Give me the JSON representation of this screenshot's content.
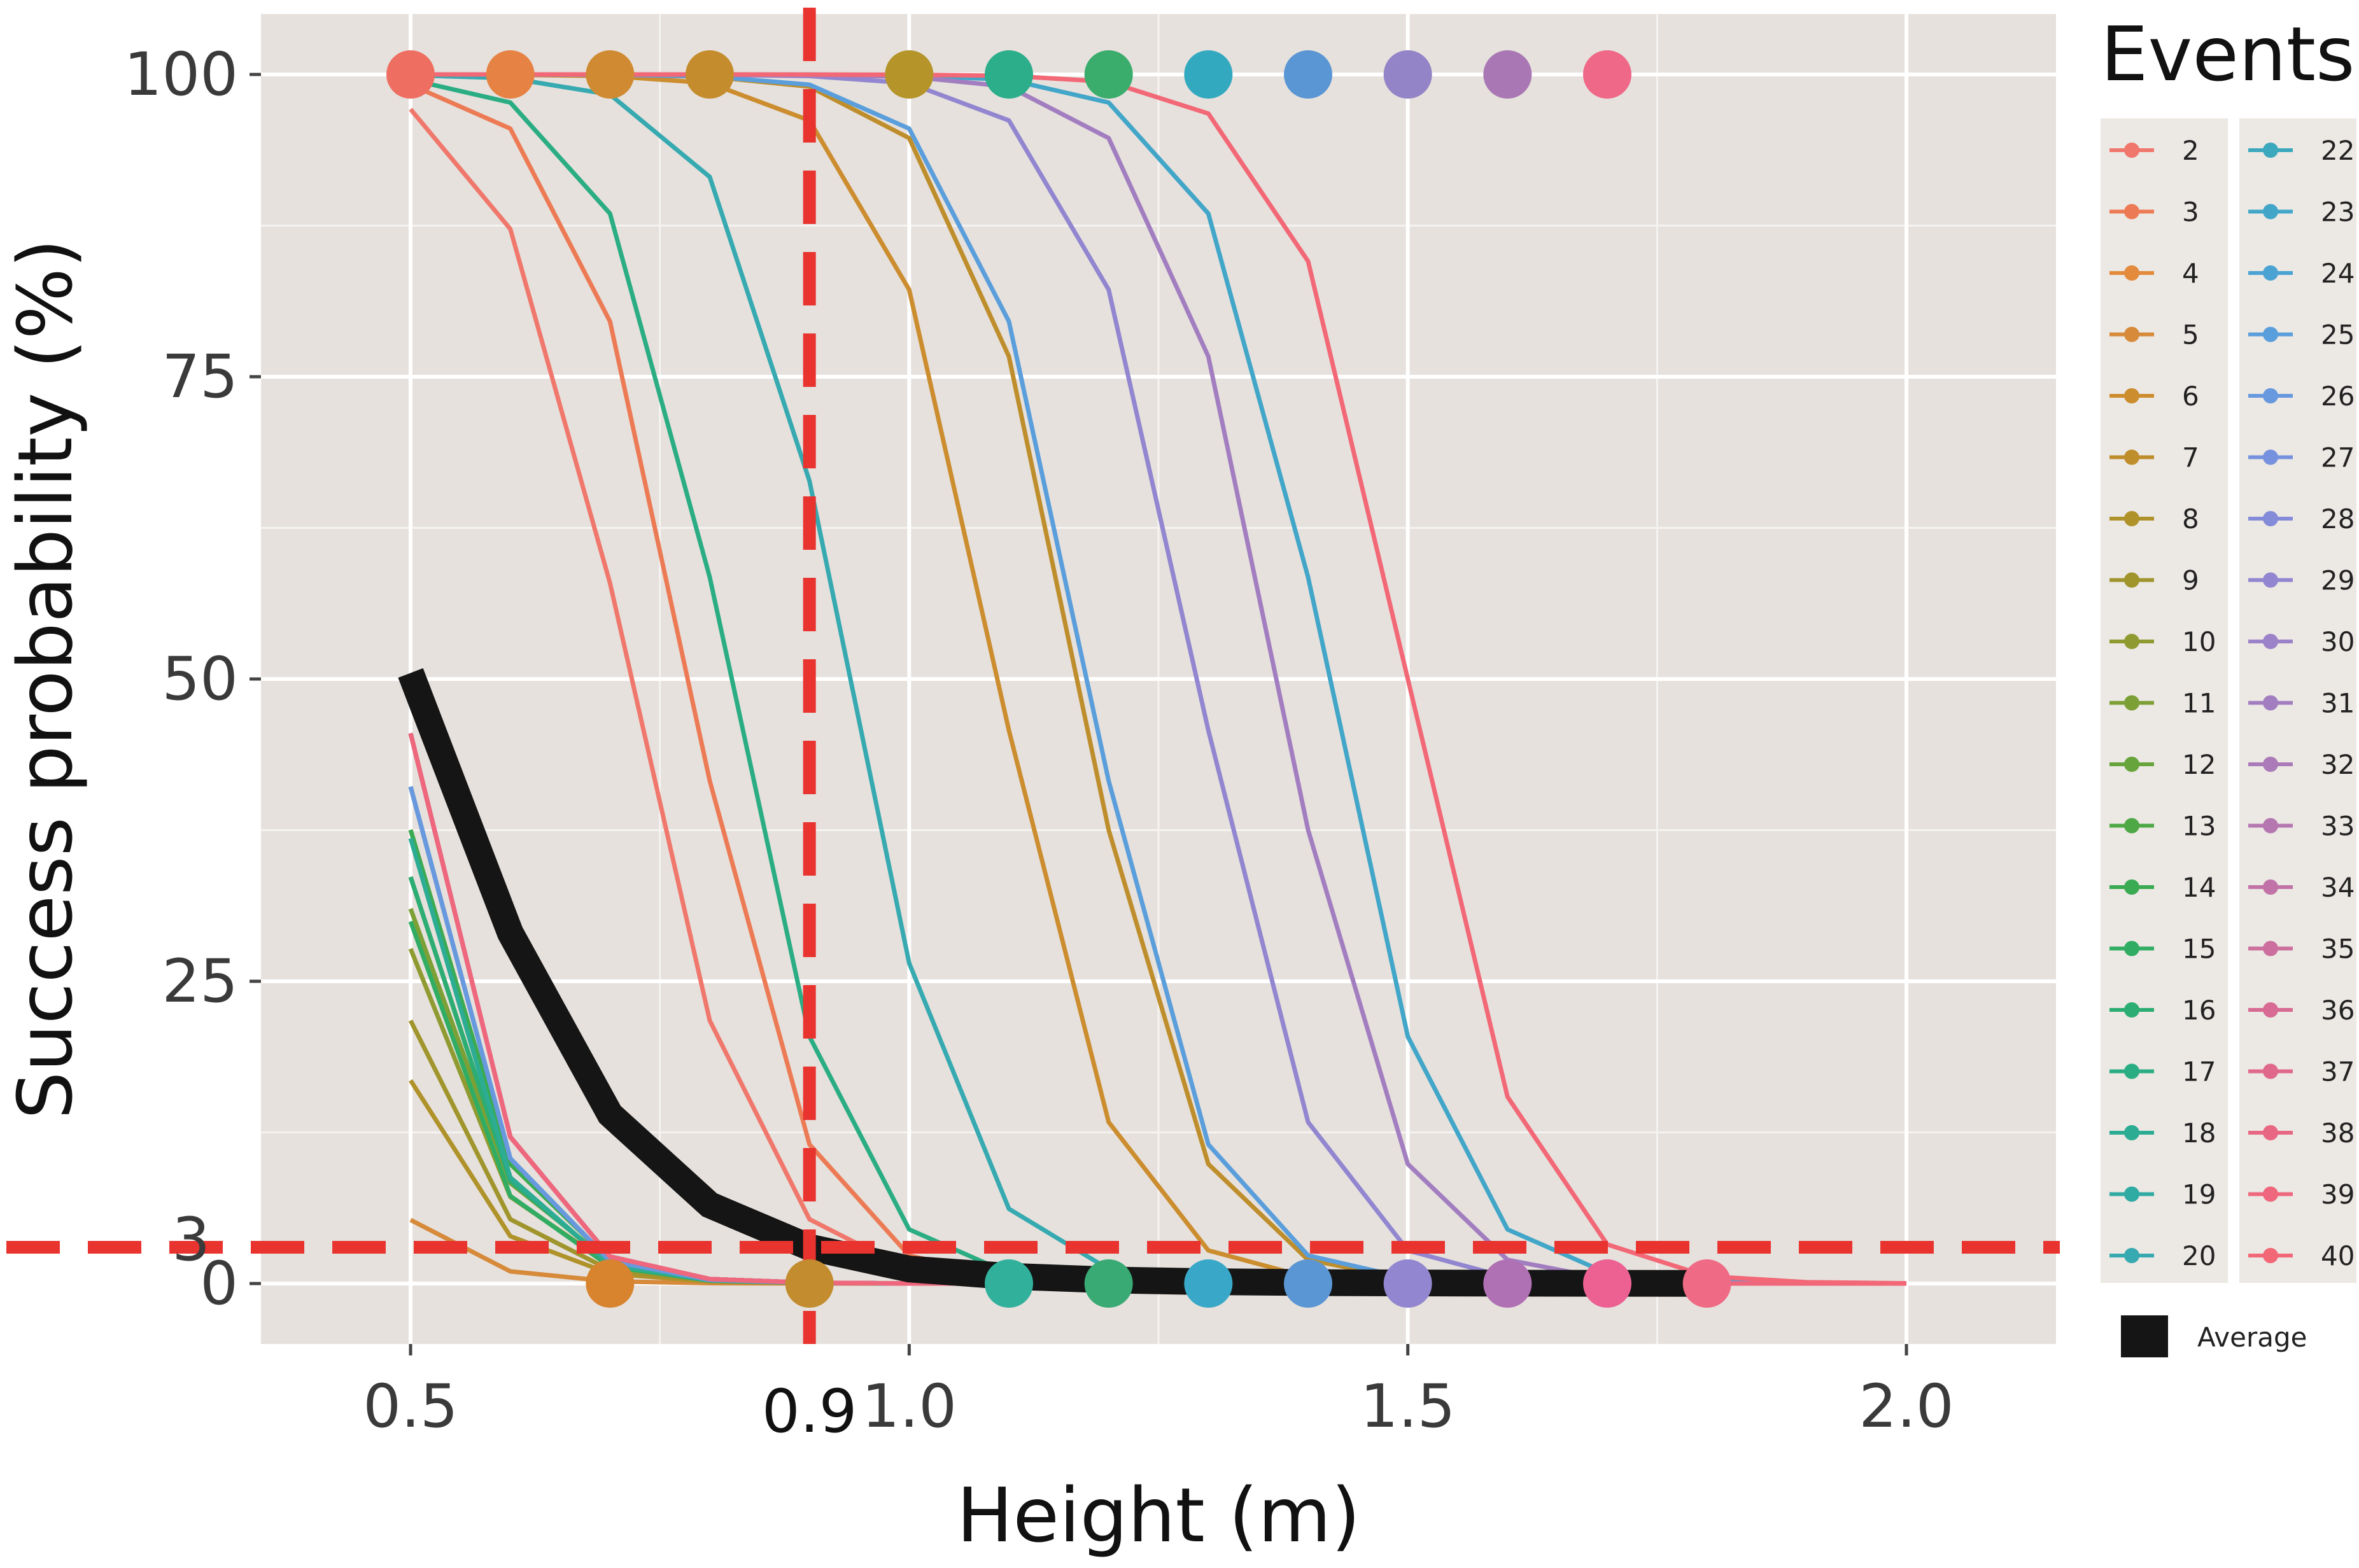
{
  "chart_data": {
    "type": "line",
    "xlabel": "Height (m)",
    "ylabel": "Success probability (%)",
    "xlim": [
      0.35,
      2.15
    ],
    "ylim": [
      -5,
      105
    ],
    "x_ticks": [
      0.5,
      1.0,
      1.5,
      2.0
    ],
    "x_tick_labels": [
      "0.5",
      "1.0",
      "1.5",
      "2.0"
    ],
    "y_ticks": [
      0,
      25,
      50,
      75,
      100
    ],
    "y_tick_labels": [
      "0",
      "25",
      "50",
      "75",
      "100"
    ],
    "grid": true,
    "legend_title": "Events",
    "legend_position": "right",
    "average_label": "Average",
    "x_marker": {
      "value": 0.9,
      "label": "0.9",
      "color": "#e8332f"
    },
    "y_marker": {
      "value": 3,
      "label": "3",
      "color": "#e8332f"
    },
    "x": [
      0.5,
      0.6,
      0.7,
      0.8,
      0.9,
      1.0,
      1.1,
      1.2,
      1.3,
      1.4,
      1.5,
      1.6,
      1.7,
      1.8,
      1.9,
      2.0
    ],
    "series": [
      {
        "name": "2",
        "color": "#f0776c",
        "x0": 0.72,
        "k": 16
      },
      {
        "name": "3",
        "color": "#ec7b55",
        "x0": 0.78,
        "k": 17
      },
      {
        "name": "4",
        "color": "#e38a3c",
        "x0": 0.47,
        "k": 17
      },
      {
        "name": "5",
        "color": "#d68a3a",
        "x0": 0.33,
        "k": 17
      },
      {
        "name": "6",
        "color": "#cc8d2f",
        "x0": 1.09,
        "k": 17
      },
      {
        "name": "7",
        "color": "#bf8e2c",
        "x0": 1.17,
        "k": 17
      },
      {
        "name": "8",
        "color": "#b0922a",
        "x0": 0.4,
        "k": 16
      },
      {
        "name": "9",
        "color": "#a0952c",
        "x0": 0.42,
        "k": 16
      },
      {
        "name": "10",
        "color": "#8f9b30",
        "x0": 0.44,
        "k": 16
      },
      {
        "name": "11",
        "color": "#7ca035",
        "x0": 0.45,
        "k": 16
      },
      {
        "name": "12",
        "color": "#67a43c",
        "x0": 0.46,
        "k": 17
      },
      {
        "name": "13",
        "color": "#4ea845",
        "x0": 0.46,
        "k": 17
      },
      {
        "name": "14",
        "color": "#3aab52",
        "x0": 0.47,
        "k": 17
      },
      {
        "name": "15",
        "color": "#30ad62",
        "x0": 0.45,
        "k": 17
      },
      {
        "name": "16",
        "color": "#2cad73",
        "x0": 0.46,
        "k": 17
      },
      {
        "name": "17",
        "color": "#2bad83",
        "x0": 0.82,
        "k": 17
      },
      {
        "name": "18",
        "color": "#2dac94",
        "x0": 0.47,
        "k": 18
      },
      {
        "name": "19",
        "color": "#30aba3",
        "x0": 0.48,
        "k": 18
      },
      {
        "name": "20",
        "color": "#36aab0",
        "x0": 0.94,
        "k": 17
      },
      {
        "name": "22",
        "color": "#3ca8bd",
        "x0": 0.49,
        "k": 18
      },
      {
        "name": "23",
        "color": "#42a6c8",
        "x0": 1.42,
        "k": 17
      },
      {
        "name": "24",
        "color": "#4aa3d2",
        "x0": 0.48,
        "k": 18
      },
      {
        "name": "25",
        "color": "#5a9edb",
        "x0": 1.18,
        "k": 17
      },
      {
        "name": "26",
        "color": "#6898de",
        "x0": 0.48,
        "k": 18
      },
      {
        "name": "27",
        "color": "#7692de",
        "x0": 0.49,
        "k": 18
      },
      {
        "name": "28",
        "color": "#848bd8",
        "x0": 0.49,
        "k": 18
      },
      {
        "name": "29",
        "color": "#9186cf",
        "x0": 1.29,
        "k": 17
      },
      {
        "name": "30",
        "color": "#9c82c8",
        "x0": 0.49,
        "k": 18
      },
      {
        "name": "31",
        "color": "#a27ec0",
        "x0": 1.37,
        "k": 17
      },
      {
        "name": "32",
        "color": "#ab7ab8",
        "x0": 0.49,
        "k": 18
      },
      {
        "name": "33",
        "color": "#b577b0",
        "x0": 0.49,
        "k": 18
      },
      {
        "name": "34",
        "color": "#c173a8",
        "x0": 0.49,
        "k": 18
      },
      {
        "name": "35",
        "color": "#cc6f9e",
        "x0": 0.49,
        "k": 18
      },
      {
        "name": "36",
        "color": "#d76b94",
        "x0": 0.49,
        "k": 18
      },
      {
        "name": "37",
        "color": "#e0688b",
        "x0": 0.49,
        "k": 18
      },
      {
        "name": "38",
        "color": "#e86783",
        "x0": 0.49,
        "k": 18
      },
      {
        "name": "39",
        "color": "#ee677c",
        "x0": 0.49,
        "k": 18
      },
      {
        "name": "40",
        "color": "#f26876",
        "x0": 1.5,
        "k": 17
      }
    ],
    "average": {
      "name": "Average",
      "color": "#151515",
      "x": [
        0.5,
        0.6,
        0.7,
        0.8,
        0.9,
        1.0,
        1.1,
        1.2,
        1.3,
        1.4,
        1.5,
        1.6,
        1.7,
        1.8
      ],
      "values": [
        50.5,
        29,
        14,
        6.5,
        3,
        1.2,
        0.6,
        0.3,
        0.15,
        0.08,
        0.05,
        0.03,
        0.02,
        0.01
      ]
    },
    "top_points": [
      {
        "x": 0.5,
        "color": "#ee6f62"
      },
      {
        "x": 0.6,
        "color": "#e58244"
      },
      {
        "x": 0.7,
        "color": "#d08a31"
      },
      {
        "x": 0.8,
        "color": "#c48c2d"
      },
      {
        "x": 1.0,
        "color": "#b5952a"
      },
      {
        "x": 1.1,
        "color": "#2cae8a"
      },
      {
        "x": 1.2,
        "color": "#3aac6c"
      },
      {
        "x": 1.3,
        "color": "#33a9c0"
      },
      {
        "x": 1.4,
        "color": "#5a96d4"
      },
      {
        "x": 1.5,
        "color": "#9284c6"
      },
      {
        "x": 1.6,
        "color": "#a978b4"
      },
      {
        "x": 1.7,
        "color": "#ef6888"
      }
    ],
    "bottom_points": [
      {
        "x": 0.7,
        "color": "#d8842e"
      },
      {
        "x": 0.9,
        "color": "#c38c2f"
      },
      {
        "x": 1.1,
        "color": "#31b09c"
      },
      {
        "x": 1.2,
        "color": "#3aaa75"
      },
      {
        "x": 1.3,
        "color": "#39a8c8"
      },
      {
        "x": 1.4,
        "color": "#5a96d4"
      },
      {
        "x": 1.5,
        "color": "#9186cf"
      },
      {
        "x": 1.6,
        "color": "#b070b4"
      },
      {
        "x": 1.7,
        "color": "#ec6192"
      },
      {
        "x": 1.8,
        "color": "#ef6a84"
      }
    ]
  }
}
